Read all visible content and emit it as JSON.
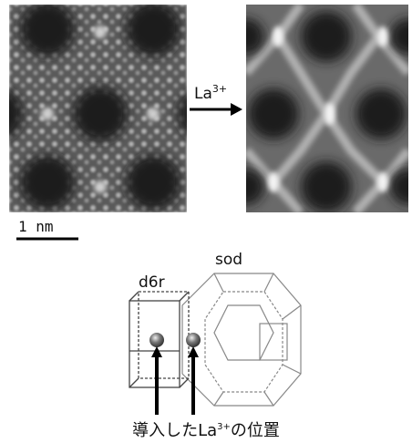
{
  "arrow_label": {
    "base": "La",
    "sup": "3+"
  },
  "scale_bar": "1 nm",
  "structure": {
    "d6r": "d6r",
    "sod": "sod"
  },
  "caption": {
    "before": "導入した",
    "ion": "La",
    "sup": "3+",
    "after": "の位置"
  }
}
